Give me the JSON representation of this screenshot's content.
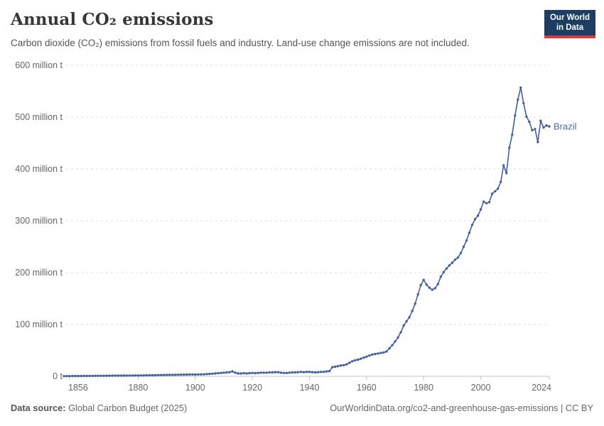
{
  "header": {
    "title": "Annual CO₂ emissions",
    "subtitle": "Carbon dioxide (CO₂) emissions from fossil fuels and industry. Land-use change emissions are not included.",
    "logo": {
      "line1": "Our World",
      "line2": "in Data"
    }
  },
  "footer": {
    "source_label": "Data source:",
    "source_value": " Global Carbon Budget (2025)",
    "url": "OurWorldinData.org/co2-and-greenhouse-gas-emissions",
    "separator": " | ",
    "license": "CC BY"
  },
  "colors": {
    "line": "#44609f",
    "series_label": "#4d6aa4",
    "grid": "#dedede",
    "axis": "#c3c3c3",
    "tick_text": "#666666",
    "logo_navy": "#1d3d63",
    "logo_red": "#d73c43"
  },
  "chart_data": {
    "type": "line",
    "title": "Annual CO₂ emissions",
    "xlabel": "",
    "ylabel": "",
    "unit": "million t",
    "xlim": [
      1854,
      2024
    ],
    "ylim": [
      0,
      600
    ],
    "grid": "horizontal-dashed",
    "legend": "end-of-line-label",
    "x_start_year": 1854,
    "x_ticks": [
      1856,
      1880,
      1900,
      1920,
      1940,
      1960,
      1980,
      2000,
      2024
    ],
    "y_ticks": [
      {
        "value": 0,
        "label": "0 t"
      },
      {
        "value": 100,
        "label": "100 million t"
      },
      {
        "value": 200,
        "label": "200 million t"
      },
      {
        "value": 300,
        "label": "300 million t"
      },
      {
        "value": 400,
        "label": "400 million t"
      },
      {
        "value": 500,
        "label": "500 million t"
      },
      {
        "value": 600,
        "label": "600 million t"
      }
    ],
    "series": [
      {
        "name": "Brazil",
        "color": "#44609f",
        "values": [
          0.3,
          0.4,
          0.4,
          0.5,
          0.5,
          0.6,
          0.6,
          0.7,
          0.7,
          0.8,
          0.8,
          0.9,
          0.9,
          1.0,
          1.0,
          1.1,
          1.1,
          1.2,
          1.2,
          1.3,
          1.3,
          1.4,
          1.4,
          1.5,
          1.5,
          1.6,
          1.6,
          1.7,
          1.8,
          1.9,
          2.0,
          2.1,
          2.2,
          2.3,
          2.4,
          2.5,
          2.6,
          2.7,
          2.8,
          2.9,
          3.0,
          3.1,
          3.2,
          3.3,
          3.4,
          3.5,
          3.3,
          3.5,
          3.7,
          3.9,
          4.2,
          4.6,
          5.0,
          5.5,
          6.0,
          6.5,
          7.0,
          7.5,
          8.0,
          9.5,
          7.0,
          5.5,
          5.5,
          6.0,
          5.5,
          6.0,
          6.5,
          6.0,
          6.5,
          7.0,
          7.0,
          7.0,
          7.5,
          7.5,
          8.0,
          8.0,
          7.0,
          6.5,
          6.5,
          7.0,
          7.5,
          7.5,
          8.0,
          8.5,
          8.0,
          8.5,
          8.5,
          8.0,
          7.5,
          8.0,
          8.5,
          8.5,
          9.5,
          10.0,
          17.5,
          18.5,
          19.5,
          21,
          21.5,
          23,
          26,
          29,
          31,
          32,
          34,
          36,
          38,
          40,
          42,
          43,
          44,
          45,
          46,
          48,
          54,
          60,
          67,
          75,
          85,
          98,
          106,
          114,
          126,
          140,
          158,
          176,
          186,
          177,
          171,
          167,
          170,
          178,
          192,
          201,
          208,
          214,
          219,
          225,
          229,
          238,
          250,
          262,
          277,
          292,
          303,
          310,
          322,
          337,
          334,
          336,
          352,
          357,
          362,
          375,
          407,
          392,
          441,
          466,
          503,
          534,
          557,
          527,
          501,
          491,
          475,
          477,
          452,
          493,
          480,
          484,
          482
        ]
      }
    ]
  }
}
